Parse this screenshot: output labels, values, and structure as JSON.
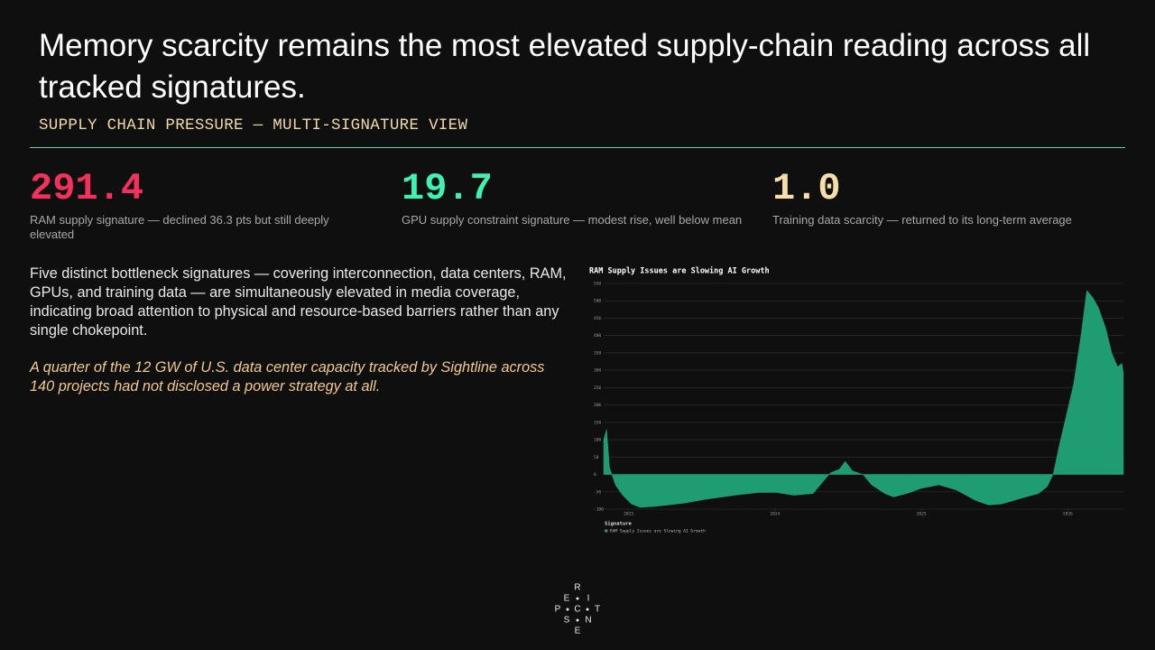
{
  "title": "Memory scarcity remains the most elevated supply-chain reading across all tracked signatures.",
  "subtitle": "SUPPLY CHAIN PRESSURE — MULTI-SIGNATURE VIEW",
  "kpis": [
    {
      "value": "291.4",
      "label": "RAM supply signature — declined 36.3 pts but still deeply elevated",
      "color": "#f2325c"
    },
    {
      "value": "19.7",
      "label": "GPU supply constraint signature — modest rise, well below mean",
      "color": "#3ef2b2"
    },
    {
      "value": "1.0",
      "label": "Training data scarcity — returned to its long-term average",
      "color": "#f5deaa"
    }
  ],
  "body": "Five distinct bottleneck signatures — covering interconnection, data centers, RAM, GPUs, and training data — are simultaneously elevated in media coverage, indicating broad attention to physical and resource-based barriers rather than any single chokepoint.",
  "quote": "A quarter of the 12 GW of U.S. data center capacity tracked by Sightline across 140 projects had not disclosed a power strategy at all.",
  "logo": {
    "letters": [
      "R",
      "E",
      "I",
      "P",
      "C",
      "T",
      "S",
      "N",
      "E"
    ]
  },
  "chart_data": {
    "type": "area",
    "title": "RAM Supply Issues are Slowing AI Growth",
    "legend_title": "Signature",
    "x": [
      2022.83,
      2022.85,
      2022.87,
      2022.91,
      2022.96,
      2023.02,
      2023.08,
      2023.18,
      2023.27,
      2023.39,
      2023.52,
      2023.64,
      2023.76,
      2023.89,
      2024.01,
      2024.13,
      2024.26,
      2024.33,
      2024.38,
      2024.44,
      2024.48,
      2024.53,
      2024.6,
      2024.66,
      2024.75,
      2024.81,
      2024.9,
      2025.0,
      2025.12,
      2025.24,
      2025.37,
      2025.46,
      2025.55,
      2025.67,
      2025.8,
      2025.86,
      2025.9,
      2025.94,
      2025.99,
      2026.04,
      2026.09,
      2026.13,
      2026.17,
      2026.21,
      2026.26,
      2026.3,
      2026.34,
      2026.37,
      2026.38
    ],
    "series": [
      {
        "name": "RAM Supply Issues are Slowing AI Growth",
        "color": "#1f9c72",
        "values": [
          100,
          130,
          20,
          -30,
          -60,
          -85,
          -95,
          -92,
          -88,
          -82,
          -72,
          -65,
          -58,
          -52,
          -52,
          -60,
          -55,
          -20,
          5,
          15,
          38,
          10,
          0,
          -30,
          -55,
          -65,
          -55,
          -40,
          -30,
          -45,
          -75,
          -88,
          -85,
          -70,
          -55,
          -35,
          0,
          80,
          170,
          260,
          400,
          530,
          510,
          480,
          420,
          350,
          310,
          320,
          290
        ]
      }
    ],
    "xlim": [
      2022.83,
      2026.38
    ],
    "xticks": [
      2023,
      2024,
      2025,
      2026
    ],
    "ylim": [
      -100,
      550
    ],
    "yticks": [
      -100,
      -50,
      0,
      50,
      100,
      150,
      200,
      250,
      300,
      350,
      400,
      450,
      500,
      550
    ],
    "grid": true
  }
}
